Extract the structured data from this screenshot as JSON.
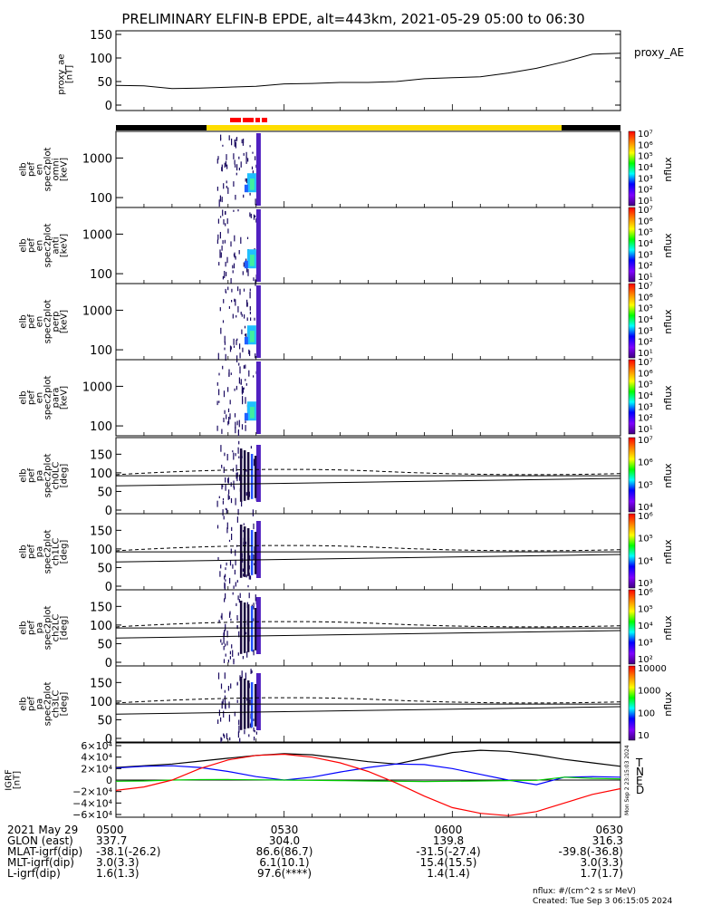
{
  "title": "PRELIMINARY ELFIN-B EPDE, alt=443km, 2021-05-29 05:00 to 06:30",
  "colors": {
    "black": "#000000",
    "yellow": "#ffdd00",
    "red": "#ff0000",
    "blue": "#0000ff",
    "green": "#00cc00"
  },
  "panels": {
    "ae": {
      "ylabel": [
        "proxy_ae",
        "[nT]"
      ],
      "legend": "proxy_AE",
      "yticks": [
        "150",
        "100",
        "50",
        "0"
      ]
    },
    "energy": [
      {
        "ylabel": [
          "elb",
          "pef",
          "en",
          "spec2plot",
          "omni",
          "[keV]"
        ]
      },
      {
        "ylabel": [
          "elb",
          "pef",
          "en",
          "spec2plot",
          "anti",
          "[keV]"
        ]
      },
      {
        "ylabel": [
          "elb",
          "pef",
          "en",
          "spec2plot",
          "perp",
          "[keV]"
        ]
      },
      {
        "ylabel": [
          "elb",
          "pef",
          "en",
          "spec2plot",
          "para",
          "[keV]"
        ]
      }
    ],
    "energy_yticks": [
      "1000",
      "100"
    ],
    "pa": [
      {
        "ylabel": [
          "elb",
          "pef",
          "pa",
          "spec2plot",
          "ch0LC",
          "[deg]"
        ]
      },
      {
        "ylabel": [
          "elb",
          "pef",
          "pa",
          "spec2plot",
          "ch1LC",
          "[deg]"
        ]
      },
      {
        "ylabel": [
          "elb",
          "pef",
          "pa",
          "spec2plot",
          "ch2LC",
          "[deg]"
        ]
      },
      {
        "ylabel": [
          "elb",
          "pef",
          "pa",
          "spec2plot",
          "ch3LC",
          "[deg]"
        ]
      }
    ],
    "pa_yticks": [
      "150",
      "100",
      "50",
      "0"
    ],
    "igrf": {
      "ylabel": [
        "IGRF",
        "[nT]"
      ],
      "legend": [
        "T",
        "N",
        "E",
        "D"
      ],
      "yticks": [
        "6×10⁴",
        "4×10⁴",
        "2×10⁴",
        "0",
        "−2×10⁴",
        "−4×10⁴",
        "−6×10⁴"
      ],
      "stamp": "Mon Sep  2 23:15:03 2024"
    }
  },
  "colorbars": [
    {
      "label": "nflux",
      "ticks": [
        "10⁷",
        "10⁶",
        "10⁵",
        "10⁴",
        "10³",
        "10²",
        "10¹"
      ]
    },
    {
      "label": "nflux",
      "ticks": [
        "10⁷",
        "10⁶",
        "10⁵",
        "10⁴",
        "10³",
        "10²",
        "10¹"
      ]
    },
    {
      "label": "nflux",
      "ticks": [
        "10⁷",
        "10⁶",
        "10⁵",
        "10⁴",
        "10³",
        "10²",
        "10¹"
      ]
    },
    {
      "label": "nflux",
      "ticks": [
        "10⁷",
        "10⁶",
        "10⁵",
        "10⁴",
        "10³",
        "10²",
        "10¹"
      ]
    },
    {
      "label": "nflux",
      "ticks": [
        "10⁷",
        "10⁶",
        "10⁵",
        "10⁴"
      ]
    },
    {
      "label": "nflux",
      "ticks": [
        "10⁶",
        "10⁵",
        "10⁴",
        "10³"
      ]
    },
    {
      "label": "nflux",
      "ticks": [
        "10⁶",
        "10⁵",
        "10⁴",
        "10³",
        "10²"
      ]
    },
    {
      "label": "nflux",
      "ticks": [
        "10000",
        "1000",
        "100",
        "10"
      ]
    }
  ],
  "footer": {
    "rows": [
      {
        "label": "2021 May 29",
        "values": [
          "0500",
          "0530",
          "0600",
          "0630"
        ]
      },
      {
        "label": "GLON (east)",
        "values": [
          "337.7",
          "304.0",
          "139.8",
          "316.3"
        ]
      },
      {
        "label": "MLAT-igrf(dip)",
        "values": [
          "-38.1(-26.2)",
          "86.6(86.7)",
          "-31.5(-27.4)",
          "-39.8(-36.8)"
        ]
      },
      {
        "label": "MLT-igrf(dip)",
        "values": [
          "3.0(3.3)",
          "6.1(10.1)",
          "15.4(15.5)",
          "3.0(3.3)"
        ]
      },
      {
        "label": "L-igrf(dip)",
        "values": [
          "1.6(1.3)",
          "97.6(****)",
          "1.4(1.4)",
          "1.7(1.7)"
        ]
      }
    ],
    "units": "nflux: #/(cm^2 s sr MeV)",
    "created": "Created: Tue Sep  3 06:15:05 2024"
  },
  "chart_data": {
    "type": "line",
    "x_range": [
      "05:00",
      "06:30"
    ],
    "proxy_ae": {
      "name": "proxy_AE",
      "ylim": [
        0,
        150
      ],
      "x_min": [
        0,
        5,
        10,
        15,
        20,
        25,
        30,
        35,
        40,
        45,
        50,
        55,
        60,
        65,
        70,
        75,
        80,
        85,
        90
      ],
      "values": [
        42,
        41,
        35,
        36,
        38,
        40,
        45,
        46,
        48,
        48,
        50,
        56,
        58,
        60,
        68,
        78,
        92,
        108,
        110
      ]
    },
    "igrf": {
      "ylim": [
        -60000,
        60000
      ],
      "x_min": [
        0,
        5,
        10,
        15,
        20,
        25,
        30,
        35,
        40,
        45,
        50,
        55,
        60,
        65,
        70,
        75,
        80,
        85,
        90
      ],
      "series": [
        {
          "name": "T",
          "values": [
            22000,
            25000,
            28000,
            33000,
            38000,
            43000,
            46000,
            44000,
            38000,
            32000,
            28000,
            38000,
            48000,
            52000,
            50000,
            44000,
            36000,
            30000,
            24000
          ]
        },
        {
          "name": "N",
          "values": [
            21000,
            24000,
            25000,
            22000,
            15000,
            6000,
            0,
            5000,
            14000,
            22000,
            28000,
            27000,
            20000,
            10000,
            0,
            -8000,
            5000,
            6000,
            5000
          ]
        },
        {
          "name": "E",
          "values": [
            -2000,
            -1500,
            0,
            800,
            1000,
            500,
            0,
            -500,
            -1000,
            -1500,
            -2000,
            -2500,
            -2000,
            -1500,
            -1000,
            -500,
            5000,
            3000,
            2000
          ]
        },
        {
          "name": "D",
          "values": [
            -18000,
            -12000,
            0,
            20000,
            35000,
            43000,
            45000,
            40000,
            30000,
            15000,
            -5000,
            -28000,
            -48000,
            -58000,
            -62000,
            -55000,
            -40000,
            -25000,
            -15000
          ]
        }
      ]
    },
    "pa_lines": {
      "ylim": [
        0,
        180
      ],
      "lines": [
        {
          "name": "dashed",
          "values_start_end": [
            95,
            98
          ],
          "peak": 112
        },
        {
          "name": "solid-upper",
          "values_start_end": [
            92,
            92
          ]
        },
        {
          "name": "solid-lower",
          "values_start_end": [
            65,
            85
          ]
        }
      ]
    },
    "energy_ylim_keV": [
      60,
      7000
    ],
    "burst_window_min": [
      18,
      26
    ]
  }
}
